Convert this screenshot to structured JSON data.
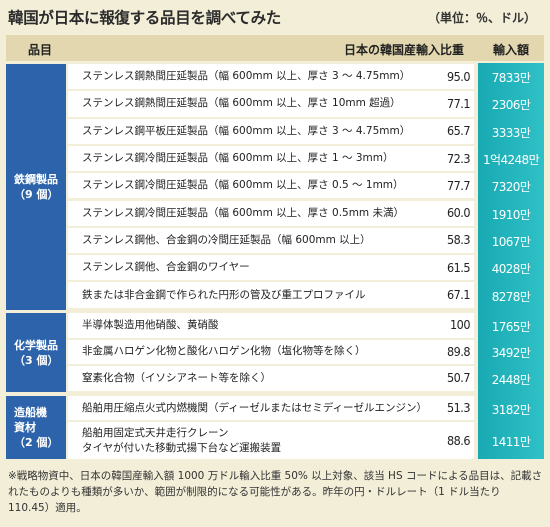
{
  "title": "韓国が日本に報復する品目を調べてみた",
  "unit": "（単位：％、ドル）",
  "header": {
    "item": "品目",
    "ratio": "日本の韓国産輸入比重",
    "amount": "輸入額"
  },
  "categories": [
    {
      "line1": "鉄鋼製品",
      "line2": "（9 個）",
      "line3": ""
    },
    {
      "line1": "化学製品",
      "line2": "（3 個）",
      "line3": ""
    },
    {
      "line1": "造船機",
      "line2": "資材",
      "line3": "（2 個）"
    }
  ],
  "chart_data": {
    "type": "table",
    "columns": [
      "品目",
      "日本の韓国産輸入比重",
      "輸入額"
    ],
    "rows": [
      {
        "category": "鉄鋼製品（9 個）",
        "item": "ステンレス鋼熱間圧延製品（幅 600mm 以上、厚さ 3 ～ 4.75mm）",
        "ratio": "95.0",
        "amount": "7833만"
      },
      {
        "category": "鉄鋼製品（9 個）",
        "item": "ステンレス鋼熱間圧延製品（幅 600mm 以上、厚さ 10mm 超過）",
        "ratio": "77.1",
        "amount": "2306만"
      },
      {
        "category": "鉄鋼製品（9 個）",
        "item": "ステンレス鋼平板圧延製品（幅 600mm 以上、厚さ 3 ～ 4.75mm）",
        "ratio": "65.7",
        "amount": "3333만"
      },
      {
        "category": "鉄鋼製品（9 個）",
        "item": "ステンレス鋼冷間圧延製品（幅 600mm 以上、厚さ 1 ～ 3mm）",
        "ratio": "72.3",
        "amount": "1억4248만"
      },
      {
        "category": "鉄鋼製品（9 個）",
        "item": "ステンレス鋼冷間圧延製品（幅 600mm 以上、厚さ 0.5 ～ 1mm）",
        "ratio": "77.7",
        "amount": "7320만"
      },
      {
        "category": "鉄鋼製品（9 個）",
        "item": "ステンレス鋼冷間圧延製品（幅 600mm 以上、厚さ 0.5mm 未満）",
        "ratio": "60.0",
        "amount": "1910만"
      },
      {
        "category": "鉄鋼製品（9 個）",
        "item": "ステンレス鋼他、合金鋼の冷間圧延製品（幅 600mm 以上）",
        "ratio": "58.3",
        "amount": "1067만"
      },
      {
        "category": "鉄鋼製品（9 個）",
        "item": "ステンレス鋼他、合金鋼のワイヤー",
        "ratio": "61.5",
        "amount": "4028만"
      },
      {
        "category": "鉄鋼製品（9 個）",
        "item": "鉄または非合金鋼で作られた円形の管及び重工プロファイル",
        "ratio": "67.1",
        "amount": "8278만"
      },
      {
        "category": "化学製品（3 個）",
        "item": "半導体製造用他硝酸、黄硝酸",
        "ratio": "100",
        "amount": "1765만"
      },
      {
        "category": "化学製品（3 個）",
        "item": "非金属ハロゲン化物と酸化ハロゲン化物（塩化物等を除く）",
        "ratio": "89.8",
        "amount": "3492만"
      },
      {
        "category": "化学製品（3 個）",
        "item": "窒素化合物（イソシアネート等を除く）",
        "ratio": "50.7",
        "amount": "2448만"
      },
      {
        "category": "造船機資材（2 個）",
        "item": "船舶用圧縮点火式内燃機関（ディーゼルまたはセミディーゼルエンジン）",
        "ratio": "51.3",
        "amount": "3182만"
      },
      {
        "category": "造船機資材（2 個）",
        "item": "船舶用固定式天井走行クレーン\nタイヤが付いた移動式揚下台など運搬装置",
        "ratio": "88.6",
        "amount": "1411만"
      }
    ]
  },
  "note": "※戦略物資中、日本の韓国産輸入額 1000 万ドル輸入比重 50% 以上対象、該当 HS コードによる品目は、記載されたものよりも種類が多いか、範囲が制限的になる可能性がある。昨年の円・ドルレート（1 ドル当たり 110.45）適用。"
}
